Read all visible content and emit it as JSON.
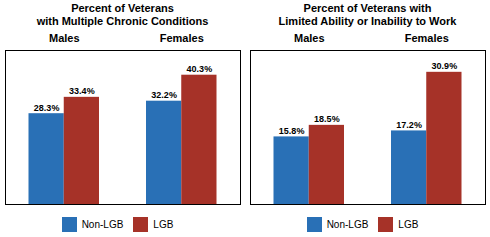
{
  "chart_data": [
    {
      "type": "bar",
      "title": "Percent of Veterans\nwith Multiple Chronic Conditions",
      "categories": [
        "Males",
        "Females"
      ],
      "series": [
        {
          "name": "Non-LGB",
          "color": "#2970B6",
          "values": [
            28.3,
            32.2
          ],
          "value_labels": [
            "28.3%",
            "32.2%"
          ]
        },
        {
          "name": "LGB",
          "color": "#A63228",
          "values": [
            33.4,
            40.3
          ],
          "value_labels": [
            "33.4%",
            "40.3%"
          ]
        }
      ],
      "ylim": [
        0,
        48
      ],
      "yticks": [],
      "tick_labels": "x",
      "grid": false,
      "data_labels": true,
      "legend": "bottom"
    },
    {
      "type": "bar",
      "title": "Percent of Veterans with\nLimited Ability or Inability to Work",
      "categories": [
        "Males",
        "Females"
      ],
      "series": [
        {
          "name": "Non-LGB",
          "color": "#2970B6",
          "values": [
            15.8,
            17.2
          ],
          "value_labels": [
            "15.8%",
            "17.2%"
          ]
        },
        {
          "name": "LGB",
          "color": "#A63228",
          "values": [
            18.5,
            30.9
          ],
          "value_labels": [
            "18.5%",
            "30.9%"
          ]
        }
      ],
      "ylim": [
        0,
        36
      ],
      "yticks": [],
      "tick_labels": "x",
      "grid": false,
      "data_labels": true,
      "legend": "bottom"
    }
  ]
}
